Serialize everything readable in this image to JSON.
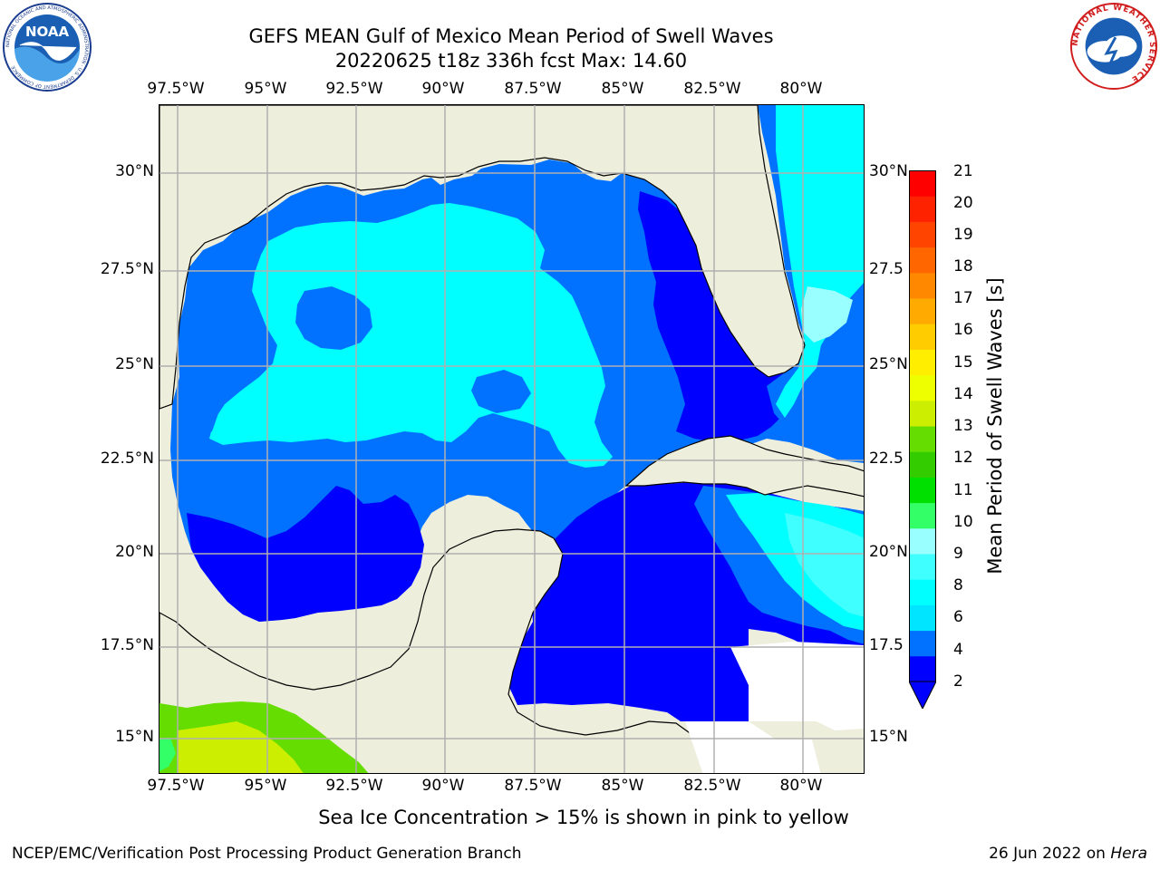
{
  "title_line1": "GEFS MEAN Gulf of Mexico Mean Period of Swell Waves",
  "title_line2": "20220625 t18z 336h fcst   Max: 14.60",
  "lon_labels": [
    "97.5°W",
    "95°W",
    "92.5°W",
    "90°W",
    "87.5°W",
    "85°W",
    "82.5°W",
    "80°W"
  ],
  "lat_labels": [
    "30°N",
    "27.5°N",
    "25°N",
    "22.5°N",
    "20°N",
    "17.5°N",
    "15°N"
  ],
  "lat_labels_right": [
    "30°N",
    "27.5",
    "25°N",
    "22.5",
    "20°N",
    "17.5",
    "15°N"
  ],
  "colorbar": {
    "label": "Mean Period of Swell Waves [s]",
    "ticks": [
      "21",
      "20",
      "19",
      "18",
      "17",
      "16",
      "15",
      "14",
      "13",
      "12",
      "11",
      "10",
      "9",
      "8",
      "6",
      "4",
      "2"
    ],
    "colors": [
      "#0000ff",
      "#0072ff",
      "#00e5ff",
      "#00ffff",
      "#40ffff",
      "#99ffff",
      "#33ff66",
      "#00e000",
      "#33cc00",
      "#66dd00",
      "#ccee00",
      "#eeff00",
      "#ffee00",
      "#ffcc00",
      "#ffaa00",
      "#ff8800",
      "#ff6600",
      "#ff4400",
      "#ff2200",
      "#ff0000"
    ]
  },
  "footer_note": "Sea Ice Concentration > 15% is shown in pink to yellow",
  "credit_left": "NCEP/EMC/Verification Post Processing Product Generation Branch",
  "credit_right_date": "26 Jun 2022 on",
  "credit_right_host": "Hera",
  "logos": {
    "noaa_text": "NOAA",
    "noaa_ring_text": "NATIONAL OCEANIC AND ATMOSPHERIC ADMINISTRATION · U.S. DEPARTMENT OF COMMERCE",
    "nws_ring_text": "NATIONAL WEATHER SERVICE"
  },
  "colors": {
    "land": "#eeeedd",
    "swell_2_4": "#0072ff",
    "swell_lt2": "#0000ff",
    "swell_4_6": "#00ffff",
    "swell_6_8": "#40ffff",
    "swell_8_9": "#99ffff",
    "swell_9_10": "#33ff66",
    "swell_10_12": "#66dd00",
    "swell_12_13": "#ccee00",
    "no_data": "#ffffff",
    "grid": "#b0b0b0"
  }
}
